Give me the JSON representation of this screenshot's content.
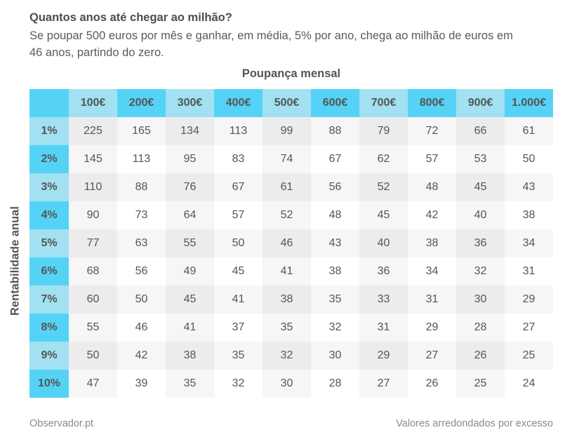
{
  "header": {
    "title": "Quantos anos até chegar ao milhão?",
    "subtitle": "Se poupar 500 euros por mês e ganhar, em média, 5% por ano, chega ao milhão de euros em 46 anos, partindo do zero."
  },
  "footer": {
    "source": "Observador.pt",
    "note": "Valores arredondados por excesso"
  },
  "colors": {
    "header_dark": "#55d3f7",
    "header_light": "#a1e1f1",
    "cell_dark": "#ececec",
    "cell_light": "#f6f6f6"
  },
  "chart_data": {
    "type": "table",
    "column_axis_label": "Poupança mensal",
    "row_axis_label": "Rentabilidade anual",
    "columns": [
      "100€",
      "200€",
      "300€",
      "400€",
      "500€",
      "600€",
      "700€",
      "800€",
      "900€",
      "1.000€"
    ],
    "rows": [
      "1%",
      "2%",
      "3%",
      "4%",
      "5%",
      "6%",
      "7%",
      "8%",
      "9%",
      "10%"
    ],
    "values": [
      [
        225,
        165,
        134,
        113,
        99,
        88,
        79,
        72,
        66,
        61
      ],
      [
        145,
        113,
        95,
        83,
        74,
        67,
        62,
        57,
        53,
        50
      ],
      [
        110,
        88,
        76,
        67,
        61,
        56,
        52,
        48,
        45,
        43
      ],
      [
        90,
        73,
        64,
        57,
        52,
        48,
        45,
        42,
        40,
        38
      ],
      [
        77,
        63,
        55,
        50,
        46,
        43,
        40,
        38,
        36,
        34
      ],
      [
        68,
        56,
        49,
        45,
        41,
        38,
        36,
        34,
        32,
        31
      ],
      [
        60,
        50,
        45,
        41,
        38,
        35,
        33,
        31,
        30,
        29
      ],
      [
        55,
        46,
        41,
        37,
        35,
        32,
        31,
        29,
        28,
        27
      ],
      [
        50,
        42,
        38,
        35,
        32,
        30,
        29,
        27,
        26,
        25
      ],
      [
        47,
        39,
        35,
        32,
        30,
        28,
        27,
        26,
        25,
        24
      ]
    ]
  }
}
